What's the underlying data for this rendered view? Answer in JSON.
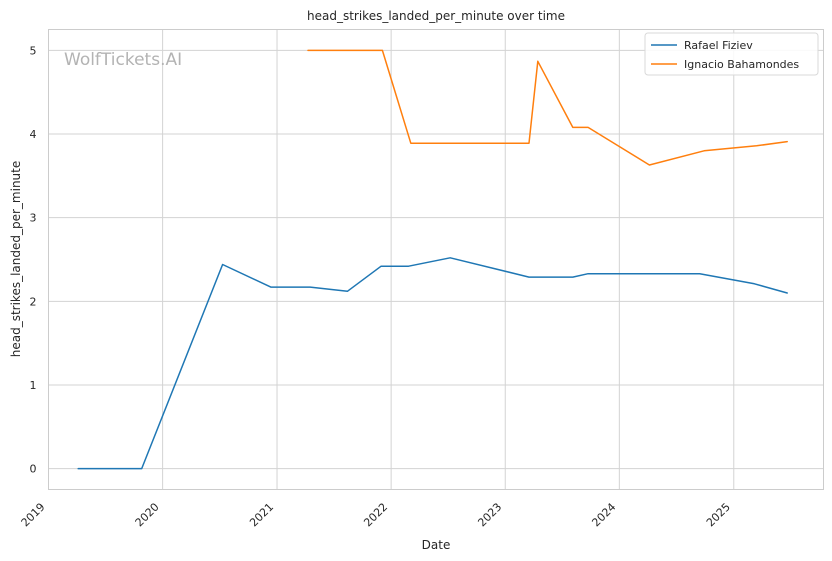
{
  "chart_data": {
    "type": "line",
    "title": "head_strikes_landed_per_minute over time",
    "xlabel": "Date",
    "ylabel": "head_strikes_landed_per_minute",
    "watermark": "WolfTickets.AI",
    "x_ticks": [
      "2019",
      "2020",
      "2021",
      "2022",
      "2023",
      "2024",
      "2025"
    ],
    "y_ticks": [
      "0",
      "1",
      "2",
      "3",
      "4",
      "5"
    ],
    "xlim": [
      "2019-01-01",
      "2025-10-15"
    ],
    "ylim": [
      -0.25,
      5.25
    ],
    "grid": true,
    "legend_position": "top-right",
    "series": [
      {
        "name": "Rafael Fiziev",
        "color": "#1f77b4",
        "points": [
          [
            "2019-04-06",
            0.0
          ],
          [
            "2019-10-26",
            0.0
          ],
          [
            "2020-07-11",
            2.44
          ],
          [
            "2020-12-12",
            2.17
          ],
          [
            "2021-04-17",
            2.17
          ],
          [
            "2021-08-14",
            2.12
          ],
          [
            "2021-11-30",
            2.42
          ],
          [
            "2022-02-26",
            2.42
          ],
          [
            "2022-07-09",
            2.52
          ],
          [
            "2023-03-18",
            2.29
          ],
          [
            "2023-08-05",
            2.29
          ],
          [
            "2023-09-23",
            2.33
          ],
          [
            "2024-09-14",
            2.33
          ],
          [
            "2025-03-08",
            2.21
          ],
          [
            "2025-06-21",
            2.1
          ]
        ]
      },
      {
        "name": "Ignacio Bahamondes",
        "color": "#ff7f0e",
        "points": [
          [
            "2021-04-10",
            5.0
          ],
          [
            "2021-12-04",
            5.0
          ],
          [
            "2022-03-05",
            3.89
          ],
          [
            "2023-03-18",
            3.89
          ],
          [
            "2023-04-15",
            4.87
          ],
          [
            "2023-08-05",
            4.08
          ],
          [
            "2023-09-23",
            4.08
          ],
          [
            "2024-04-06",
            3.63
          ],
          [
            "2024-09-28",
            3.8
          ],
          [
            "2025-03-15",
            3.86
          ],
          [
            "2025-06-21",
            3.91
          ]
        ]
      }
    ]
  }
}
